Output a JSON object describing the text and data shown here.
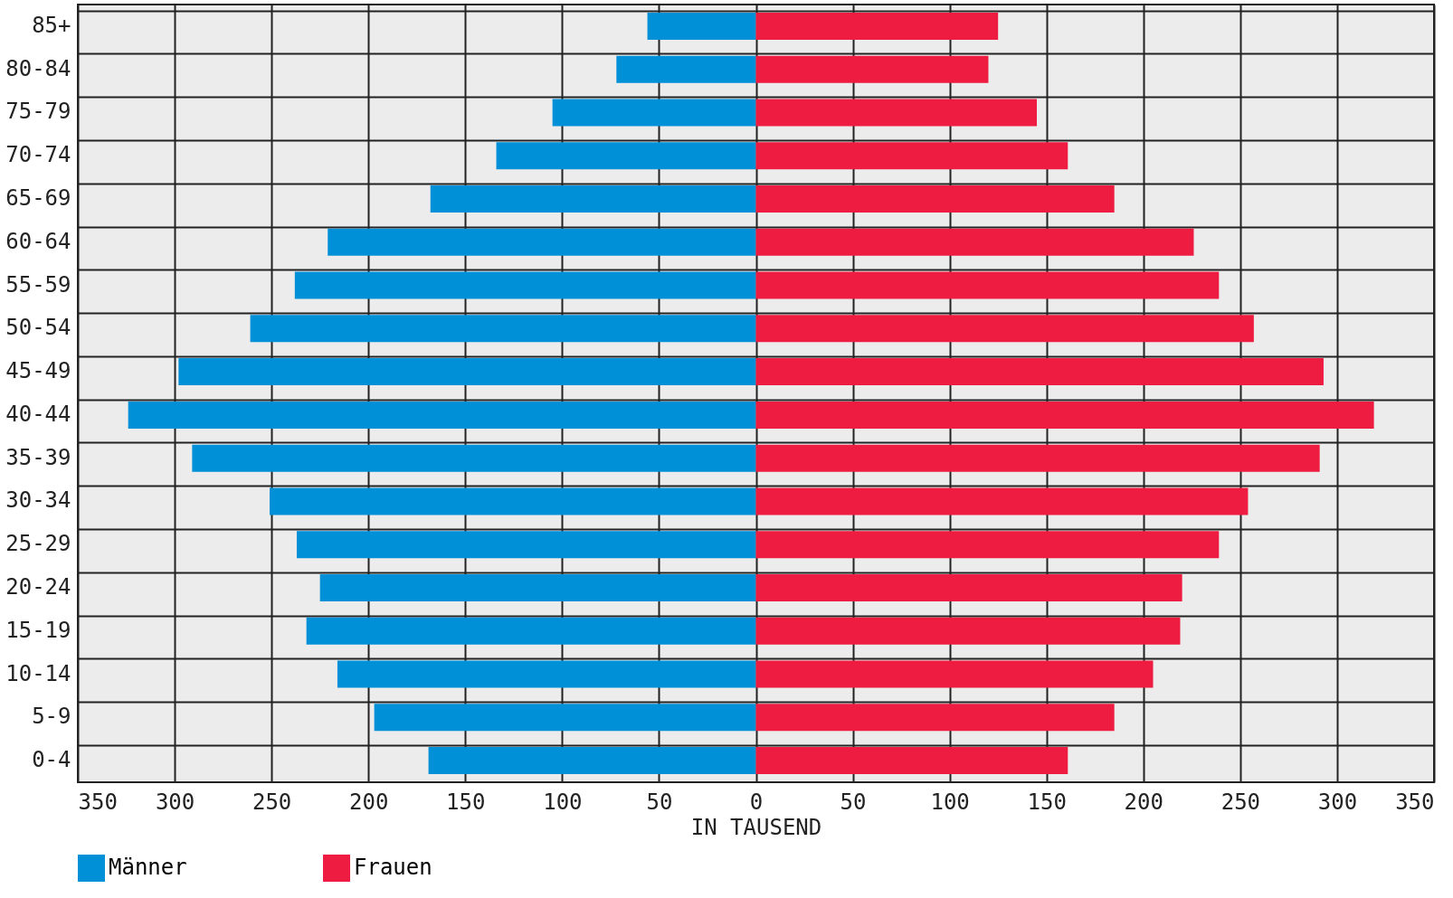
{
  "chart_data": {
    "type": "bar",
    "orientation": "horizontal",
    "xlabel": "IN TAUSEND",
    "categories": [
      "85+",
      "80-84",
      "75-79",
      "70-74",
      "65-69",
      "60-64",
      "55-59",
      "50-54",
      "45-49",
      "40-44",
      "35-39",
      "30-34",
      "25-29",
      "20-24",
      "15-19",
      "10-14",
      "5-9",
      "0-4"
    ],
    "series": [
      {
        "name": "Männer",
        "color": "#0090d8",
        "values": [
          -56,
          -72,
          -105,
          -134,
          -168,
          -221,
          -238,
          -261,
          -298,
          -324,
          -291,
          -251,
          -237,
          -225,
          -232,
          -216,
          -197,
          -169
        ]
      },
      {
        "name": "Frauen",
        "color": "#ee1c40",
        "values": [
          125,
          120,
          145,
          161,
          185,
          226,
          239,
          257,
          293,
          319,
          291,
          254,
          239,
          220,
          219,
          205,
          185,
          161
        ]
      }
    ],
    "xlim": [
      -350,
      350
    ],
    "xticks": [
      {
        "value": -350,
        "label": "350"
      },
      {
        "value": -300,
        "label": "300"
      },
      {
        "value": -250,
        "label": "250"
      },
      {
        "value": -200,
        "label": "200"
      },
      {
        "value": -150,
        "label": "150"
      },
      {
        "value": -100,
        "label": "100"
      },
      {
        "value": -50,
        "label": "50"
      },
      0,
      50,
      100,
      150,
      200,
      250,
      300,
      350
    ],
    "stacked": true,
    "grid": true,
    "legend": "bottom"
  }
}
